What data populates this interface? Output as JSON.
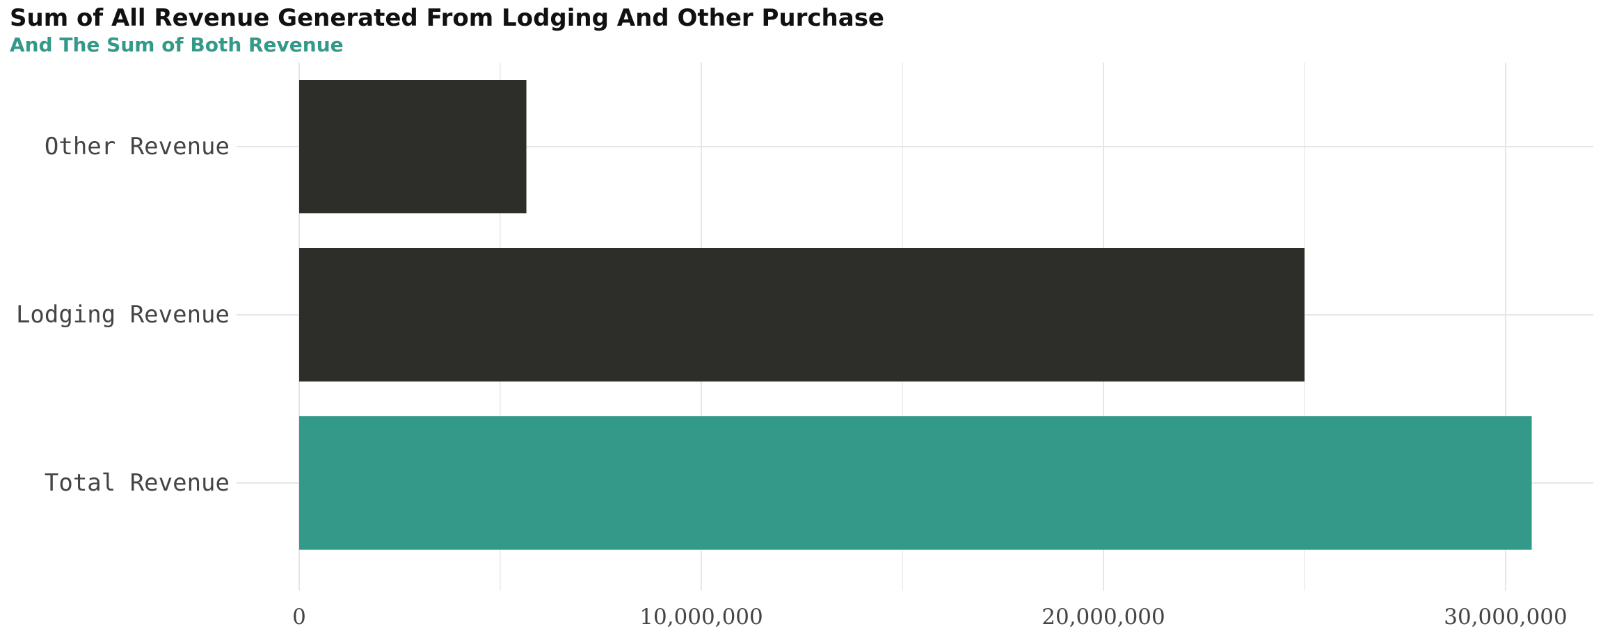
{
  "chart_data": {
    "type": "bar",
    "orientation": "horizontal",
    "title": "Sum of All Revenue Generated From Lodging And Other Purchase",
    "subtitle": "And The Sum of Both Revenue",
    "xlabel": "",
    "ylabel": "",
    "categories": [
      "Other Revenue",
      "Lodging Revenue",
      "Total Revenue"
    ],
    "values": [
      5650000,
      25000000,
      30650000
    ],
    "bar_colors": [
      "#2d2d29",
      "#2d2d29",
      "#339988"
    ],
    "xlim": [
      0,
      32000000
    ],
    "x_ticks": [
      0,
      10000000,
      20000000,
      30000000
    ],
    "x_tick_labels": [
      "0",
      "10,000,000",
      "20,000,000",
      "30,000,000"
    ],
    "grid": true,
    "legend": "none"
  }
}
